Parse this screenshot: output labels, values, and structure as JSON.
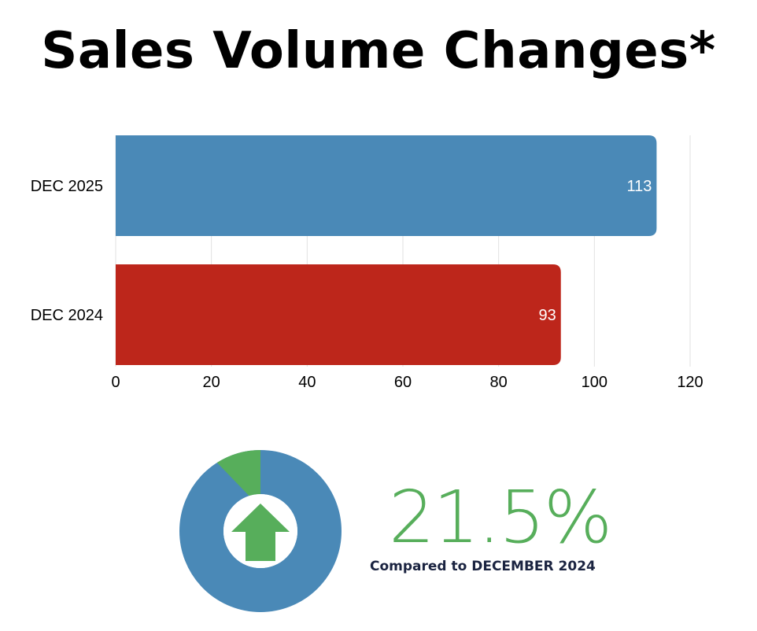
{
  "title": "Sales Volume Changes*",
  "chart_data": {
    "type": "bar",
    "orientation": "horizontal",
    "categories": [
      "DEC 2025",
      "DEC 2024"
    ],
    "values": [
      113,
      93
    ],
    "colors": [
      "#4a89b7",
      "#bd261b"
    ],
    "xlim": [
      0,
      120
    ],
    "xticks": [
      0,
      20,
      40,
      60,
      80,
      100,
      120
    ],
    "grid": true
  },
  "summary": {
    "percent": "21.5%",
    "caption": "Compared to DECEMBER 2024",
    "donut_fraction": 0.215,
    "donut_main_color": "#4a89b7",
    "donut_accent_color": "#57ae5b",
    "indicator_icon": "up-arrow-icon"
  }
}
